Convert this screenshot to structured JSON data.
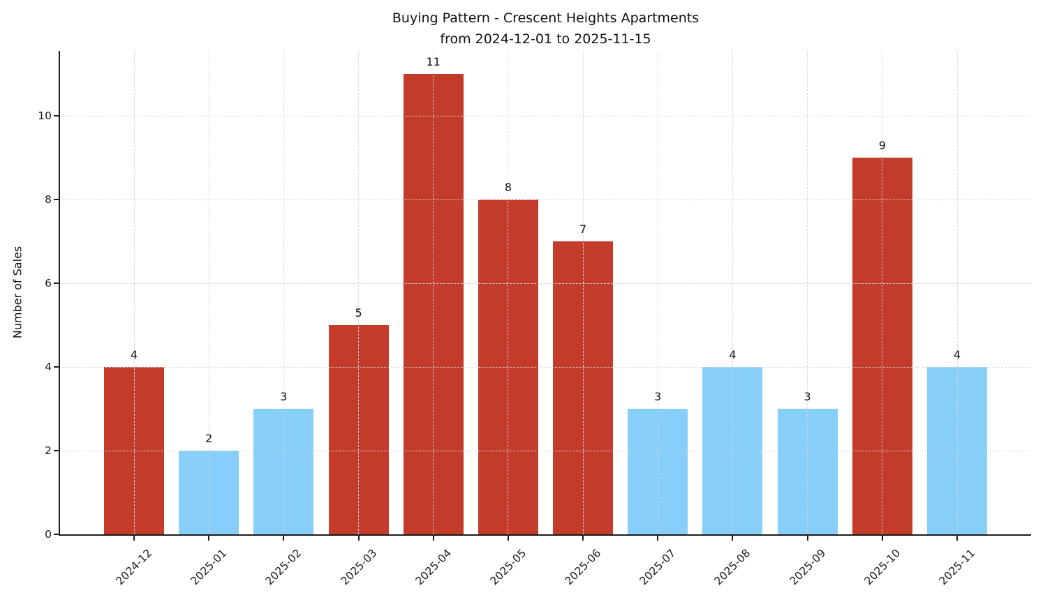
{
  "title": {
    "line1": "Buying Pattern - Crescent Heights Apartments",
    "line2": "from 2024-12-01 to 2025-11-15"
  },
  "chart_data": {
    "type": "bar",
    "title": "Buying Pattern - Crescent Heights Apartments\nfrom 2024-12-01 to 2025-11-15",
    "xlabel": "",
    "ylabel": "Number of Sales",
    "categories": [
      "2024-12",
      "2025-01",
      "2025-02",
      "2025-03",
      "2025-04",
      "2025-05",
      "2025-06",
      "2025-07",
      "2025-08",
      "2025-09",
      "2025-10",
      "2025-11"
    ],
    "values": [
      4,
      2,
      3,
      5,
      11,
      8,
      7,
      3,
      4,
      3,
      9,
      4
    ],
    "bar_value_labels": [
      "4",
      "2",
      "3",
      "5",
      "11",
      "8",
      "7",
      "3",
      "4",
      "3",
      "9",
      "4"
    ],
    "bar_colors": [
      "#c23b2b",
      "#87CEFA",
      "#87CEFA",
      "#c23b2b",
      "#c23b2b",
      "#c23b2b",
      "#c23b2b",
      "#87CEFA",
      "#87CEFA",
      "#87CEFA",
      "#c23b2b",
      "#87CEFA"
    ],
    "colors": {
      "red": "#c23b2b",
      "blue": "#87CEFA"
    },
    "yticks": [
      0,
      2,
      4,
      6,
      8,
      10
    ],
    "ylim": [
      0,
      11.55
    ],
    "grid": true,
    "grid_style": "dashed",
    "legend_position": "none"
  }
}
